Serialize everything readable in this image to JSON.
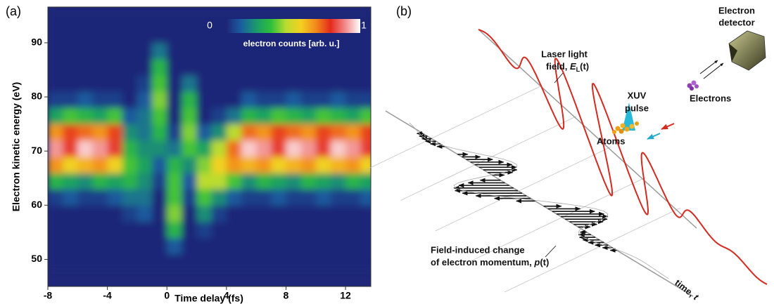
{
  "chart_data": {
    "type": "heatmap",
    "panel_label": "(a)",
    "xlabel": "Time delay (fs)",
    "ylabel": "Electron kinetic energy (eV)",
    "colorbar_label": "electron counts [arb. u.]",
    "xlim": [
      -8,
      13.7
    ],
    "ylim": [
      45,
      96.6
    ],
    "xticks": [
      -8,
      -4,
      0,
      4,
      8,
      12
    ],
    "yticks": [
      50,
      60,
      70,
      80,
      90
    ],
    "clim": [
      0,
      1
    ],
    "cticks": [
      0,
      1
    ],
    "colorscale": [
      "#1f2878",
      "#1a5fa0",
      "#1a9a6a",
      "#2fbf3a",
      "#b8dc30",
      "#f4d020",
      "#f38a1c",
      "#e42a1c",
      "#f28c8c",
      "#ffffff"
    ],
    "x": [
      -7.5,
      -6.5,
      -5.5,
      -4.5,
      -3.5,
      -2.5,
      -1.5,
      -0.5,
      0.5,
      1.5,
      2.5,
      3.5,
      4.5,
      5.5,
      6.5,
      7.5,
      8.5,
      9.5,
      10.5,
      11.5,
      12.5,
      13.5
    ],
    "y": [
      49.5,
      52.5,
      55.5,
      58.5,
      61.5,
      64.5,
      67.5,
      70.5,
      73.5,
      76.5,
      79.5,
      82.5,
      85.5,
      88.5,
      91.5,
      94.5
    ],
    "z": [
      [
        0,
        0,
        0,
        0,
        0,
        0,
        0,
        0,
        0,
        0,
        0,
        0,
        0,
        0,
        0,
        0,
        0,
        0,
        0,
        0,
        0,
        0
      ],
      [
        0,
        0,
        0,
        0,
        0,
        0,
        0,
        0,
        0.1,
        0,
        0,
        0,
        0,
        0,
        0,
        0,
        0,
        0,
        0,
        0,
        0,
        0
      ],
      [
        0,
        0,
        0,
        0,
        0,
        0,
        0,
        0,
        0.3,
        0,
        0.05,
        0,
        0,
        0,
        0,
        0,
        0,
        0,
        0,
        0,
        0,
        0
      ],
      [
        0,
        0,
        0,
        0,
        0,
        0.05,
        0.1,
        0,
        0.4,
        0,
        0.2,
        0.05,
        0,
        0,
        0,
        0,
        0,
        0,
        0,
        0,
        0,
        0
      ],
      [
        0.05,
        0.1,
        0.05,
        0.05,
        0.1,
        0.15,
        0.15,
        0,
        0.35,
        0.05,
        0.35,
        0.2,
        0.1,
        0.05,
        0.05,
        0.1,
        0.05,
        0.05,
        0.1,
        0.05,
        0.05,
        0.1
      ],
      [
        0.3,
        0.25,
        0.2,
        0.3,
        0.25,
        0.3,
        0.2,
        0.05,
        0.35,
        0.1,
        0.45,
        0.45,
        0.35,
        0.2,
        0.3,
        0.25,
        0.2,
        0.3,
        0.25,
        0.2,
        0.3,
        0.25
      ],
      [
        0.65,
        0.55,
        0.6,
        0.65,
        0.55,
        0.35,
        0.25,
        0.1,
        0.3,
        0.2,
        0.4,
        0.55,
        0.65,
        0.6,
        0.65,
        0.55,
        0.6,
        0.65,
        0.55,
        0.6,
        0.65,
        0.55
      ],
      [
        0.9,
        0.8,
        0.95,
        0.9,
        0.8,
        0.3,
        0.2,
        0.2,
        0.15,
        0.35,
        0.25,
        0.45,
        0.7,
        0.95,
        0.9,
        0.8,
        0.95,
        0.9,
        0.8,
        0.95,
        0.9,
        0.8
      ],
      [
        0.65,
        0.75,
        0.7,
        0.65,
        0.75,
        0.2,
        0.15,
        0.3,
        0.05,
        0.4,
        0.1,
        0.2,
        0.45,
        0.7,
        0.65,
        0.75,
        0.7,
        0.65,
        0.75,
        0.7,
        0.65,
        0.75
      ],
      [
        0.25,
        0.35,
        0.3,
        0.25,
        0.35,
        0.1,
        0.15,
        0.35,
        0,
        0.35,
        0,
        0.05,
        0.15,
        0.3,
        0.25,
        0.35,
        0.3,
        0.25,
        0.35,
        0.3,
        0.25,
        0.35
      ],
      [
        0.05,
        0.05,
        0.1,
        0.05,
        0.05,
        0,
        0.1,
        0.4,
        0,
        0.3,
        0,
        0,
        0,
        0.1,
        0.05,
        0.05,
        0.1,
        0.05,
        0.05,
        0.1,
        0.05,
        0.05
      ],
      [
        0,
        0,
        0,
        0,
        0,
        0,
        0.05,
        0.35,
        0,
        0.15,
        0,
        0,
        0,
        0,
        0,
        0,
        0,
        0,
        0,
        0,
        0,
        0
      ],
      [
        0,
        0,
        0,
        0,
        0,
        0,
        0,
        0.3,
        0,
        0,
        0,
        0,
        0,
        0,
        0,
        0,
        0,
        0,
        0,
        0,
        0,
        0
      ],
      [
        0,
        0,
        0,
        0,
        0,
        0,
        0,
        0.15,
        0,
        0,
        0,
        0,
        0,
        0,
        0,
        0,
        0,
        0,
        0,
        0,
        0,
        0
      ],
      [
        0,
        0,
        0,
        0,
        0,
        0,
        0,
        0,
        0,
        0,
        0,
        0,
        0,
        0,
        0,
        0,
        0,
        0,
        0,
        0,
        0,
        0
      ],
      [
        0,
        0,
        0,
        0,
        0,
        0,
        0,
        0,
        0,
        0,
        0,
        0,
        0,
        0,
        0,
        0,
        0,
        0,
        0,
        0,
        0,
        0
      ]
    ]
  },
  "diagram": {
    "panel_label": "(b)",
    "detector": [
      "Electron",
      "detector"
    ],
    "laser": {
      "line1": "Laser light",
      "line2": "field, ",
      "symbol": "E",
      "subscript": "L",
      "suffix": "(t)"
    },
    "xuv": [
      "XUV",
      "pulse"
    ],
    "electrons": "Electrons",
    "atoms": "Atoms",
    "momentum": {
      "line1": "Field-induced change",
      "line2": "of electron momentum, ",
      "symbol": "p",
      "suffix": "(t)"
    },
    "time_axis": {
      "prefix": "time, ",
      "symbol": "t"
    }
  }
}
